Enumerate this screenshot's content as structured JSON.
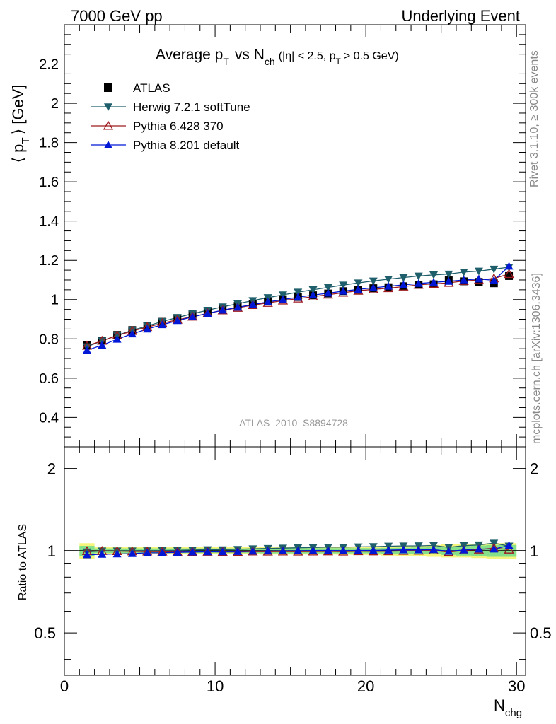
{
  "header": {
    "left": "7000 GeV pp",
    "right": "Underlying Event"
  },
  "side_labels": {
    "rivet": "Rivet 3.1.10, ≥ 300k events",
    "mcplots": "mcplots.cern.ch [arXiv:1306.3436]"
  },
  "chart_data": {
    "type": "line",
    "title": {
      "main": "Average p",
      "main_sub": "T",
      "vs": "vs N",
      "vs_sub": "ch",
      "cut1": "(|η| < 2.5, p",
      "cut1_sub": "T",
      "cut2": "> 0.5 GeV)"
    },
    "watermark": "ATLAS_2010_S8894728",
    "xlabel": "N",
    "xlabel_sub": "chg",
    "ylabel": {
      "pre": "⟨ p",
      "sub": "T",
      "post": "⟩ [GeV]"
    },
    "ratio_ylabel": "Ratio to ATLAS",
    "xlim": [
      0,
      30.6
    ],
    "ylim": [
      0.25,
      2.4
    ],
    "ratio_ylim": [
      0.35,
      2.4
    ],
    "ratio_scale": "log",
    "x_ticks": [
      "0",
      "10",
      "20",
      "30"
    ],
    "y_ticks": [
      "0.4",
      "0.6",
      "0.8",
      "1",
      "1.2",
      "1.4",
      "1.6",
      "1.8",
      "2",
      "2.2"
    ],
    "ratio_y_ticks": [
      "0.5",
      "1",
      "2"
    ],
    "legend_position": "top-left",
    "x": [
      1.5,
      2.5,
      3.5,
      4.5,
      5.5,
      6.5,
      7.5,
      8.5,
      9.5,
      10.5,
      11.5,
      12.5,
      13.5,
      14.5,
      15.5,
      16.5,
      17.5,
      18.5,
      19.5,
      20.5,
      21.5,
      22.5,
      23.5,
      24.5,
      25.5,
      26.5,
      27.5,
      28.5,
      29.5
    ],
    "series": [
      {
        "name": "ATLAS",
        "marker": "square",
        "color": "#000000",
        "values": [
          0.768,
          0.792,
          0.82,
          0.845,
          0.866,
          0.887,
          0.906,
          0.922,
          0.938,
          0.955,
          0.968,
          0.979,
          0.991,
          1.002,
          1.013,
          1.022,
          1.031,
          1.043,
          1.05,
          1.058,
          1.063,
          1.068,
          1.075,
          1.078,
          1.098,
          1.093,
          1.09,
          1.083,
          1.12
        ],
        "ratio": [
          1,
          1,
          1,
          1,
          1,
          1,
          1,
          1,
          1,
          1,
          1,
          1,
          1,
          1,
          1,
          1,
          1,
          1,
          1,
          1,
          1,
          1,
          1,
          1,
          1,
          1,
          1,
          1,
          1
        ]
      },
      {
        "name": "Herwig 7.2.1 softTune",
        "marker": "triangle-down",
        "color": "#1f5f6b",
        "values": [
          0.76,
          0.79,
          0.818,
          0.843,
          0.866,
          0.888,
          0.909,
          0.928,
          0.946,
          0.963,
          0.979,
          0.995,
          1.01,
          1.024,
          1.038,
          1.05,
          1.062,
          1.074,
          1.085,
          1.095,
          1.104,
          1.112,
          1.12,
          1.126,
          1.13,
          1.14,
          1.145,
          1.155,
          1.165
        ],
        "ratio": [
          0.99,
          0.998,
          0.998,
          0.998,
          1.0,
          1.001,
          1.003,
          1.006,
          1.009,
          1.008,
          1.011,
          1.016,
          1.019,
          1.022,
          1.025,
          1.027,
          1.03,
          1.03,
          1.033,
          1.035,
          1.039,
          1.041,
          1.042,
          1.045,
          1.029,
          1.043,
          1.05,
          1.066,
          1.04
        ]
      },
      {
        "name": "Pythia 6.428 370",
        "marker": "triangle-up-open",
        "color": "#9e1a1f",
        "values": [
          0.765,
          0.79,
          0.817,
          0.84,
          0.86,
          0.88,
          0.897,
          0.913,
          0.93,
          0.945,
          0.958,
          0.972,
          0.983,
          0.995,
          1.005,
          1.015,
          1.025,
          1.035,
          1.045,
          1.052,
          1.058,
          1.066,
          1.075,
          1.08,
          1.085,
          1.095,
          1.1,
          1.108,
          1.13
        ],
        "ratio": [
          0.996,
          0.997,
          0.996,
          0.994,
          0.993,
          0.992,
          0.99,
          0.99,
          0.991,
          0.99,
          0.99,
          0.993,
          0.992,
          0.993,
          0.992,
          0.993,
          0.994,
          0.992,
          0.995,
          0.994,
          0.995,
          0.998,
          1.0,
          1.002,
          0.988,
          1.002,
          1.009,
          1.023,
          1.009
        ]
      },
      {
        "name": "Pythia 8.201 default",
        "marker": "triangle-up",
        "color": "#0018d6",
        "values": [
          0.742,
          0.768,
          0.798,
          0.825,
          0.85,
          0.872,
          0.893,
          0.912,
          0.93,
          0.946,
          0.961,
          0.975,
          0.988,
          1.0,
          1.012,
          1.023,
          1.033,
          1.043,
          1.052,
          1.06,
          1.068,
          1.075,
          1.082,
          1.088,
          1.093,
          1.1,
          1.105,
          1.098,
          1.17
        ],
        "ratio": [
          0.966,
          0.97,
          0.973,
          0.976,
          0.982,
          0.983,
          0.986,
          0.989,
          0.991,
          0.991,
          0.993,
          0.996,
          0.997,
          0.998,
          0.999,
          1.001,
          1.002,
          1.0,
          1.002,
          1.002,
          1.005,
          1.007,
          1.007,
          1.009,
          0.995,
          1.006,
          1.014,
          1.014,
          1.045
        ]
      }
    ],
    "ratio_bands": {
      "stat": {
        "color": "#86e08a",
        "rel_errors": [
          0.042,
          0.02,
          0.02,
          0.02,
          0.02,
          0.02,
          0.02,
          0.02,
          0.02,
          0.02,
          0.02,
          0.02,
          0.022,
          0.022,
          0.022,
          0.022,
          0.022,
          0.022,
          0.022,
          0.022,
          0.024,
          0.026,
          0.028,
          0.03,
          0.035,
          0.04,
          0.045,
          0.05,
          0.05
        ]
      },
      "total": {
        "color": "#f6f57b",
        "rel_errors": [
          0.065,
          0.03,
          0.03,
          0.03,
          0.03,
          0.03,
          0.03,
          0.03,
          0.03,
          0.03,
          0.03,
          0.03,
          0.032,
          0.032,
          0.032,
          0.032,
          0.032,
          0.033,
          0.034,
          0.035,
          0.04,
          0.045,
          0.045,
          0.05,
          0.055,
          0.055,
          0.06,
          0.065,
          0.065
        ]
      }
    }
  }
}
